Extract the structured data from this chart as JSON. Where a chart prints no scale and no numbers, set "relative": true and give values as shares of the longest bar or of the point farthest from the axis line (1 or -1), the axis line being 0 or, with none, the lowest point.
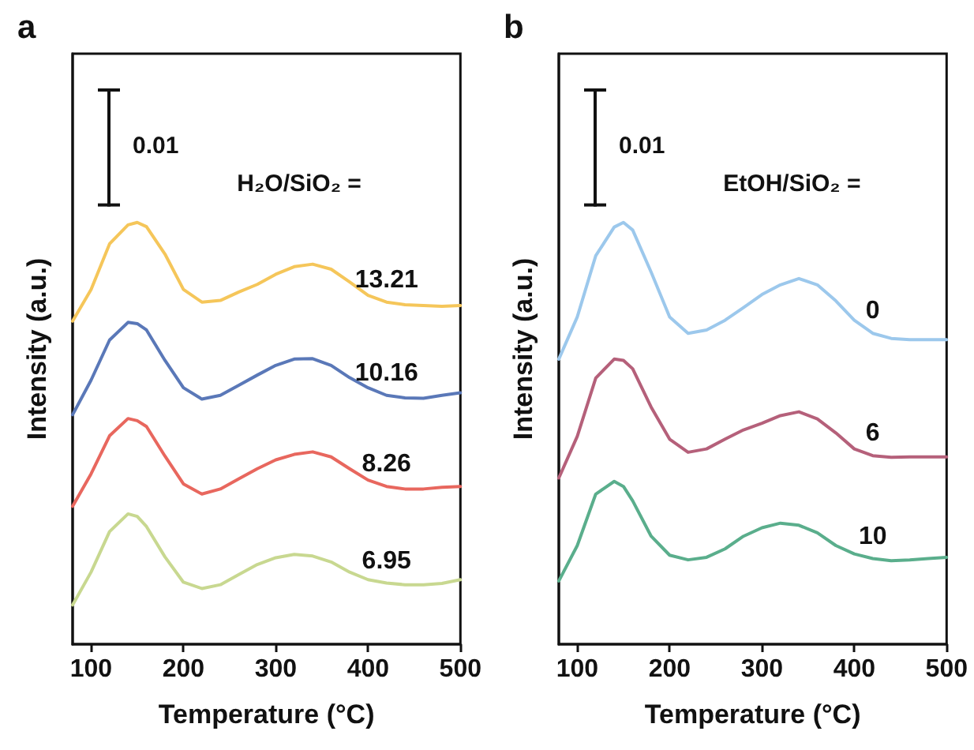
{
  "chart_data": [
    {
      "type": "line",
      "title": "a",
      "xlabel": "Temperature (°C)",
      "ylabel": "Intensity (a.u.)",
      "legend_title": "H₂O/SiO₂ =",
      "annotations": [
        "0.01"
      ],
      "relative": true,
      "xlim": [
        80,
        500
      ],
      "xticks": [
        100,
        200,
        300,
        400,
        500
      ],
      "tick_labels": "x",
      "marker": "none",
      "line_style": "solid",
      "x": [
        80,
        100,
        120,
        140,
        150,
        160,
        180,
        200,
        220,
        240,
        260,
        280,
        300,
        320,
        340,
        360,
        380,
        400,
        420,
        440,
        460,
        480,
        500
      ],
      "series": [
        {
          "name": "13.21",
          "color": "#f5c65a",
          "values": [
            0.766,
            0.841,
            0.949,
            0.994,
            1.0,
            0.99,
            0.925,
            0.841,
            0.811,
            0.815,
            0.835,
            0.853,
            0.877,
            0.895,
            0.901,
            0.889,
            0.859,
            0.827,
            0.811,
            0.805,
            0.803,
            0.801,
            0.803
          ]
        },
        {
          "name": "10.16",
          "color": "#5a78b8",
          "values": [
            0.544,
            0.626,
            0.721,
            0.763,
            0.76,
            0.745,
            0.673,
            0.608,
            0.581,
            0.59,
            0.614,
            0.638,
            0.661,
            0.676,
            0.677,
            0.661,
            0.632,
            0.608,
            0.59,
            0.584,
            0.583,
            0.59,
            0.596
          ]
        },
        {
          "name": "8.26",
          "color": "#e8675e",
          "values": [
            0.327,
            0.404,
            0.494,
            0.535,
            0.53,
            0.516,
            0.446,
            0.38,
            0.356,
            0.368,
            0.392,
            0.416,
            0.437,
            0.45,
            0.456,
            0.444,
            0.416,
            0.389,
            0.374,
            0.368,
            0.368,
            0.372,
            0.374
          ]
        },
        {
          "name": "6.95",
          "color": "#c8d890",
          "values": [
            0.093,
            0.171,
            0.267,
            0.309,
            0.303,
            0.279,
            0.207,
            0.147,
            0.132,
            0.141,
            0.165,
            0.189,
            0.205,
            0.213,
            0.209,
            0.195,
            0.171,
            0.153,
            0.145,
            0.141,
            0.141,
            0.144,
            0.153
          ]
        }
      ]
    },
    {
      "type": "line",
      "title": "b",
      "xlabel": "Temperature (°C)",
      "ylabel": "Intensity (a.u.)",
      "legend_title": "EtOH/SiO₂ =",
      "annotations": [
        "0.01"
      ],
      "relative": true,
      "xlim": [
        80,
        500
      ],
      "xticks": [
        100,
        200,
        300,
        400,
        500
      ],
      "tick_labels": "x",
      "marker": "none",
      "line_style": "solid",
      "x": [
        80,
        100,
        120,
        140,
        150,
        160,
        180,
        200,
        220,
        240,
        260,
        280,
        300,
        320,
        340,
        360,
        380,
        400,
        420,
        440,
        460,
        480,
        500
      ],
      "series": [
        {
          "name": "0",
          "color": "#9cc8ec",
          "values": [
            0.676,
            0.776,
            0.921,
            0.989,
            1.0,
            0.982,
            0.882,
            0.776,
            0.737,
            0.745,
            0.768,
            0.798,
            0.829,
            0.852,
            0.867,
            0.852,
            0.814,
            0.768,
            0.737,
            0.725,
            0.722,
            0.722,
            0.722
          ]
        },
        {
          "name": "6",
          "color": "#b5607a",
          "values": [
            0.394,
            0.493,
            0.631,
            0.676,
            0.673,
            0.653,
            0.562,
            0.486,
            0.455,
            0.463,
            0.486,
            0.508,
            0.524,
            0.542,
            0.551,
            0.534,
            0.501,
            0.463,
            0.447,
            0.443,
            0.444,
            0.444,
            0.444
          ]
        },
        {
          "name": "10",
          "color": "#5aae8c",
          "values": [
            0.15,
            0.234,
            0.356,
            0.386,
            0.374,
            0.34,
            0.256,
            0.211,
            0.2,
            0.206,
            0.226,
            0.256,
            0.276,
            0.287,
            0.282,
            0.264,
            0.234,
            0.214,
            0.203,
            0.198,
            0.2,
            0.203,
            0.206
          ]
        }
      ]
    }
  ]
}
